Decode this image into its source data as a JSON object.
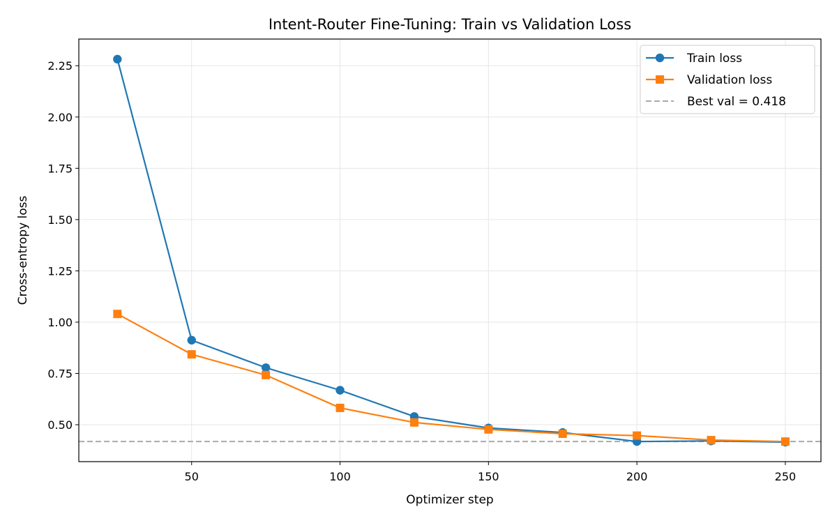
{
  "chart_data": {
    "type": "line",
    "title": "Intent-Router Fine-Tuning: Train vs Validation Loss",
    "xlabel": "Optimizer step",
    "ylabel": "Cross-entropy loss",
    "xlim": [
      12,
      262
    ],
    "ylim": [
      0.32,
      2.38
    ],
    "xticks": [
      50,
      100,
      150,
      200,
      250
    ],
    "xtick_labels": [
      "50",
      "100",
      "150",
      "200",
      "250"
    ],
    "yticks": [
      0.5,
      0.75,
      1.0,
      1.25,
      1.5,
      1.75,
      2.0,
      2.25
    ],
    "ytick_labels": [
      "0.50",
      "0.75",
      "1.00",
      "1.25",
      "1.50",
      "1.75",
      "2.00",
      "2.25"
    ],
    "grid": true,
    "legend_position": "top-right",
    "x": [
      25,
      50,
      75,
      100,
      125,
      150,
      175,
      200,
      225,
      250
    ],
    "series": [
      {
        "name": "Train loss",
        "values": [
          2.282,
          0.912,
          0.778,
          0.668,
          0.54,
          0.484,
          0.462,
          0.418,
          0.421,
          0.415
        ],
        "color": "#1f77b4",
        "marker": "circle",
        "line_style": "solid"
      },
      {
        "name": "Validation loss",
        "values": [
          1.04,
          0.843,
          0.742,
          0.582,
          0.511,
          0.477,
          0.456,
          0.447,
          0.425,
          0.418
        ],
        "color": "#ff7f0e",
        "marker": "square",
        "line_style": "solid"
      }
    ],
    "reference_lines": [
      {
        "name": "Best val = 0.418",
        "y": 0.418,
        "color": "#aaaaaa",
        "line_style": "dashed"
      }
    ]
  }
}
